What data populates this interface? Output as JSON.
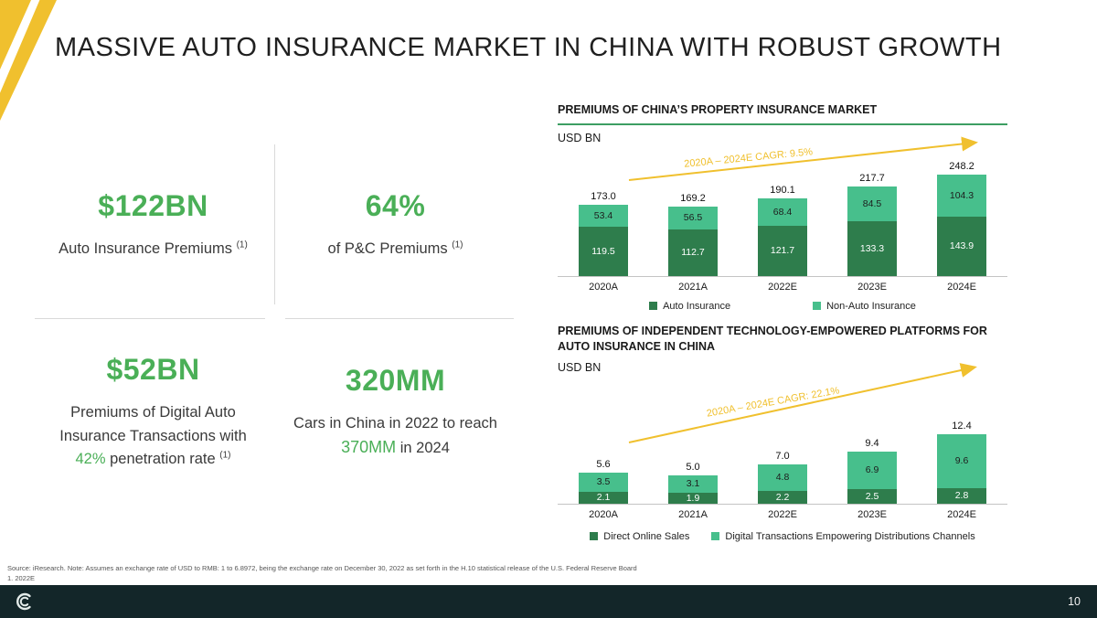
{
  "slide": {
    "title": "MASSIVE AUTO INSURANCE MARKET IN CHINA WITH ROBUST GROWTH",
    "page_number": "10",
    "source_note": "Source: iResearch. Note: Assumes an exchange rate of USD to RMB: 1 to 6.8972, being the exchange rate on December 30, 2022 as set forth in the H.10 statistical release of the U.S. Federal Reserve Board",
    "footnote": "1.  2022E"
  },
  "stats": [
    {
      "value": "$122BN",
      "label": "Auto Insurance Premiums",
      "sup": "(1)"
    },
    {
      "value": "64%",
      "label": "of P&C Premiums",
      "sup": "(1)"
    },
    {
      "value": "$52BN",
      "label_pre": "Premiums of Digital Auto Insurance Transactions with ",
      "highlight": "42%",
      "label_post": " penetration rate ",
      "sup": "(1)"
    },
    {
      "value": "320MM",
      "label_pre": "Cars in China in 2022 to reach ",
      "highlight": "370MM",
      "label_post": " in 2024"
    }
  ],
  "chart_data": [
    {
      "type": "bar",
      "stacked": true,
      "title": "PREMIUMS OF CHINA’S PROPERTY INSURANCE MARKET",
      "unit_label": "USD BN",
      "cagr_label": "2020A – 2024E CAGR: 9.5%",
      "categories": [
        "2020A",
        "2021A",
        "2022E",
        "2023E",
        "2024E"
      ],
      "series": [
        {
          "name": "Auto Insurance",
          "color": "#2e7d4c",
          "label_color": "#ffffff",
          "values": [
            119.5,
            112.7,
            121.7,
            133.3,
            143.9
          ]
        },
        {
          "name": "Non-Auto Insurance",
          "color": "#47bf8c",
          "label_color": "#1d1d1d",
          "values": [
            53.4,
            56.5,
            68.4,
            84.5,
            104.3
          ]
        }
      ],
      "totals": [
        173.0,
        169.2,
        190.1,
        217.7,
        248.2
      ],
      "ylim": [
        0,
        250
      ],
      "grid": false,
      "legend_position": "bottom"
    },
    {
      "type": "bar",
      "stacked": true,
      "title": "PREMIUMS OF INDEPENDENT TECHNOLOGY-EMPOWERED PLATFORMS FOR AUTO INSURANCE IN CHINA",
      "unit_label": "USD BN",
      "cagr_label": "2020A – 2024E CAGR: 22.1%",
      "categories": [
        "2020A",
        "2021A",
        "2022E",
        "2023E",
        "2024E"
      ],
      "series": [
        {
          "name": "Direct Online Sales",
          "color": "#2e7d4c",
          "label_color": "#ffffff",
          "values": [
            2.1,
            1.9,
            2.2,
            2.5,
            2.8
          ]
        },
        {
          "name": "Digital Transactions Empowering Distributions Channels",
          "color": "#47bf8c",
          "label_color": "#1d1d1d",
          "values": [
            3.5,
            3.1,
            4.8,
            6.9,
            9.6
          ]
        }
      ],
      "totals": [
        5.6,
        5.0,
        7.0,
        9.4,
        12.4
      ],
      "ylim": [
        0,
        13.5
      ],
      "grid": false,
      "legend_position": "bottom"
    }
  ],
  "colors": {
    "accent_green": "#4aaf57",
    "dark_green": "#2e7d4c",
    "light_green": "#47bf8c",
    "underline_green": "#3d9e62",
    "arrow_yellow": "#f0c02e",
    "footer_bg": "#132629"
  }
}
